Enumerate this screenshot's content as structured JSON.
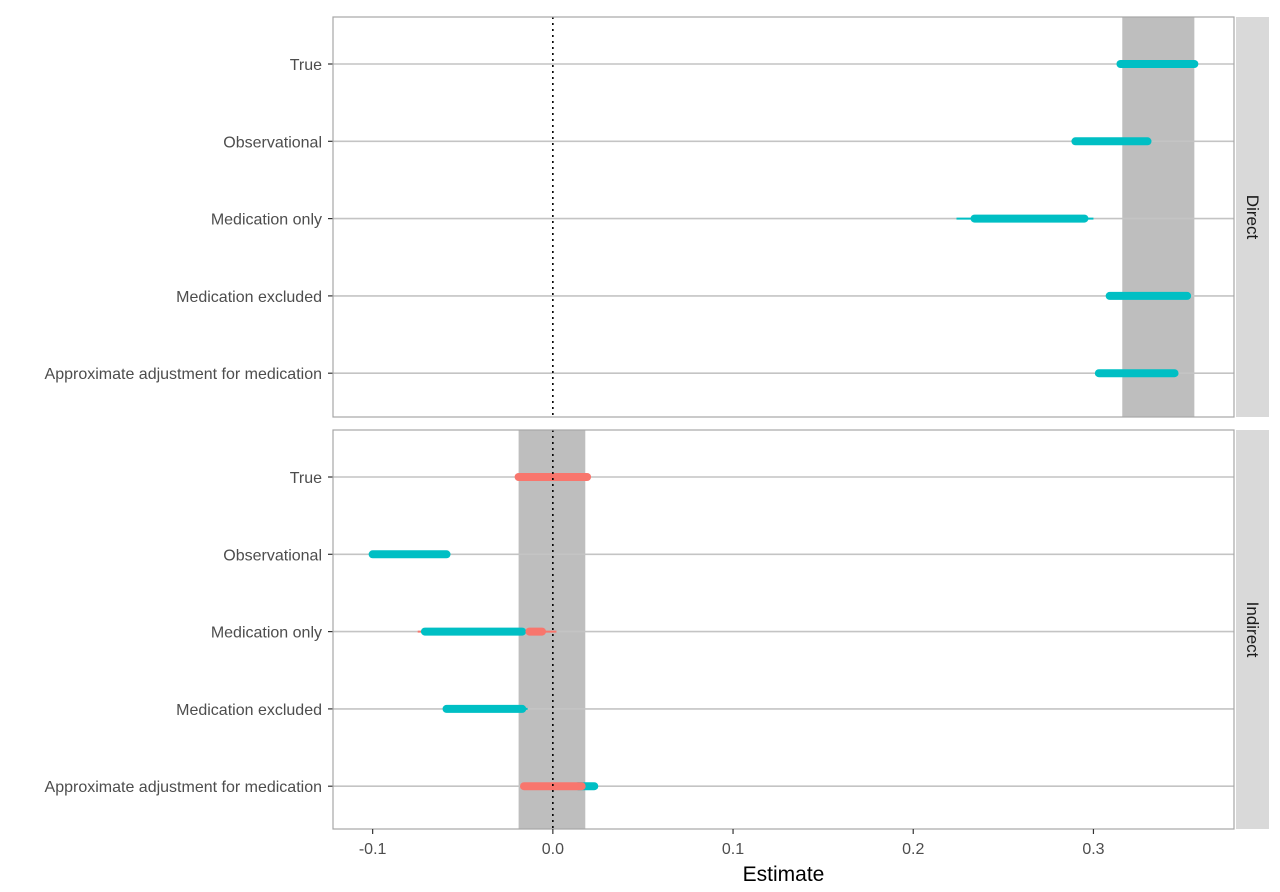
{
  "chart_data": {
    "type": "interval",
    "xlabel": "Estimate",
    "xlim": [
      -0.122,
      0.378
    ],
    "x_ticks": [
      {
        "value": -0.1,
        "label": "-0.1"
      },
      {
        "value": 0.0,
        "label": "0.0"
      },
      {
        "value": 0.1,
        "label": "0.1"
      },
      {
        "value": 0.2,
        "label": "0.2"
      },
      {
        "value": 0.3,
        "label": "0.3"
      }
    ],
    "categories": [
      "True",
      "Observational",
      "Medication only",
      "Medication excluded",
      "Approximate adjustment for medication"
    ],
    "reference_line_x": 0,
    "grid": "horizontal",
    "colors": {
      "no_overlap": "#00BFC4",
      "overlap": "#F8766D",
      "shaded_band": "#bebebe",
      "strip": "#d9d9d9",
      "gridline": "#c4c4c4"
    },
    "panels": [
      {
        "strip_label": "Direct",
        "band": [
          0.316,
          0.356
        ],
        "rows": [
          {
            "category": "True",
            "segments": [
              {
                "from": 0.315,
                "to": 0.356,
                "color": "no_overlap"
              }
            ],
            "thin": []
          },
          {
            "category": "Observational",
            "segments": [
              {
                "from": 0.29,
                "to": 0.33,
                "color": "no_overlap"
              }
            ],
            "thin": []
          },
          {
            "category": "Medication only",
            "segments": [
              {
                "from": 0.234,
                "to": 0.295,
                "color": "no_overlap"
              }
            ],
            "thin": [
              {
                "from": 0.224,
                "to": 0.3,
                "color": "no_overlap"
              }
            ]
          },
          {
            "category": "Medication excluded",
            "segments": [
              {
                "from": 0.309,
                "to": 0.352,
                "color": "no_overlap"
              }
            ],
            "thin": []
          },
          {
            "category": "Approximate adjustment for medication",
            "segments": [
              {
                "from": 0.303,
                "to": 0.345,
                "color": "no_overlap"
              }
            ],
            "thin": []
          }
        ]
      },
      {
        "strip_label": "Indirect",
        "band": [
          -0.019,
          0.018
        ],
        "rows": [
          {
            "category": "True",
            "segments": [
              {
                "from": -0.019,
                "to": 0.019,
                "color": "overlap"
              }
            ],
            "thin": []
          },
          {
            "category": "Observational",
            "segments": [
              {
                "from": -0.1,
                "to": -0.059,
                "color": "no_overlap"
              }
            ],
            "thin": []
          },
          {
            "category": "Medication only",
            "segments": [
              {
                "from": -0.071,
                "to": -0.017,
                "color": "no_overlap"
              },
              {
                "from": -0.013,
                "to": -0.006,
                "color": "overlap"
              }
            ],
            "thin": [
              {
                "from": -0.075,
                "to": 0.002,
                "color": "overlap"
              }
            ]
          },
          {
            "category": "Medication excluded",
            "segments": [
              {
                "from": -0.059,
                "to": -0.017,
                "color": "no_overlap"
              }
            ],
            "thin": [
              {
                "from": -0.06,
                "to": -0.014,
                "color": "no_overlap"
              }
            ]
          },
          {
            "category": "Approximate adjustment for medication",
            "segments": [
              {
                "from": 0.014,
                "to": 0.023,
                "color": "no_overlap"
              },
              {
                "from": -0.016,
                "to": 0.016,
                "color": "overlap"
              }
            ],
            "thin": []
          }
        ]
      }
    ]
  }
}
